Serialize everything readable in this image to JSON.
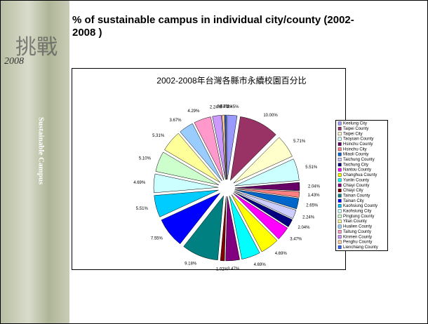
{
  "slide": {
    "title": "% of sustainable campus in individual city/county (2002-2008 )",
    "sidebar": {
      "calligraphy": "挑戰",
      "year": "2008",
      "tagline": "Sustainable Campus"
    }
  },
  "chart_data": {
    "type": "pie",
    "title": "2002-2008年台灣各縣市永續校園百分比",
    "categories": [
      "Keelung City",
      "Taipei County",
      "Taipei City",
      "Taoyuan County",
      "Hsinchu County",
      "Hsinchu City",
      "Miaoli County",
      "Taichung County",
      "Taichung City",
      "Nantou County",
      "Changhua County",
      "Yunlin County",
      "Chiayi County",
      "Chiayi City",
      "Tainan County",
      "Tainan City",
      "Kaohsiung County",
      "Kaohsiung City",
      "Pingtung County",
      "Yilan County",
      "Hualien County",
      "Taitung County",
      "Kinmen County",
      "Penghu County",
      "Lienchiang County"
    ],
    "values": [
      2.45,
      10.0,
      5.71,
      5.51,
      2.04,
      1.43,
      2.65,
      2.24,
      2.04,
      3.47,
      4.69,
      4.69,
      3.47,
      1.02,
      9.18,
      7.55,
      5.51,
      4.69,
      5.1,
      5.31,
      3.67,
      4.29,
      2.24,
      0.61,
      0.41
    ],
    "value_labels": [
      "2.45%",
      "10.00%",
      "5.71%",
      "5.51%",
      "2.04%",
      "1.43%",
      "2.65%",
      "2.24%",
      "2.04%",
      "3.47%",
      "4.69%",
      "4.69%",
      "3.47%",
      "1.02%",
      "9.18%",
      "7.55%",
      "5.51%",
      "4.69%",
      "5.10%",
      "5.31%",
      "3.67%",
      "4.29%",
      "2.24%",
      "0.61%",
      "0.41%"
    ],
    "colors": [
      "#9999ff",
      "#993366",
      "#ffffcc",
      "#ccffff",
      "#660066",
      "#ff8080",
      "#0066cc",
      "#ccccff",
      "#000080",
      "#ff00ff",
      "#ffff00",
      "#00ffff",
      "#800080",
      "#800000",
      "#008080",
      "#0000ff",
      "#00ccff",
      "#ccffff",
      "#ccffcc",
      "#ffff99",
      "#99ccff",
      "#ff99cc",
      "#cc99ff",
      "#ffcc99",
      "#3366ff"
    ],
    "legend": "right"
  }
}
